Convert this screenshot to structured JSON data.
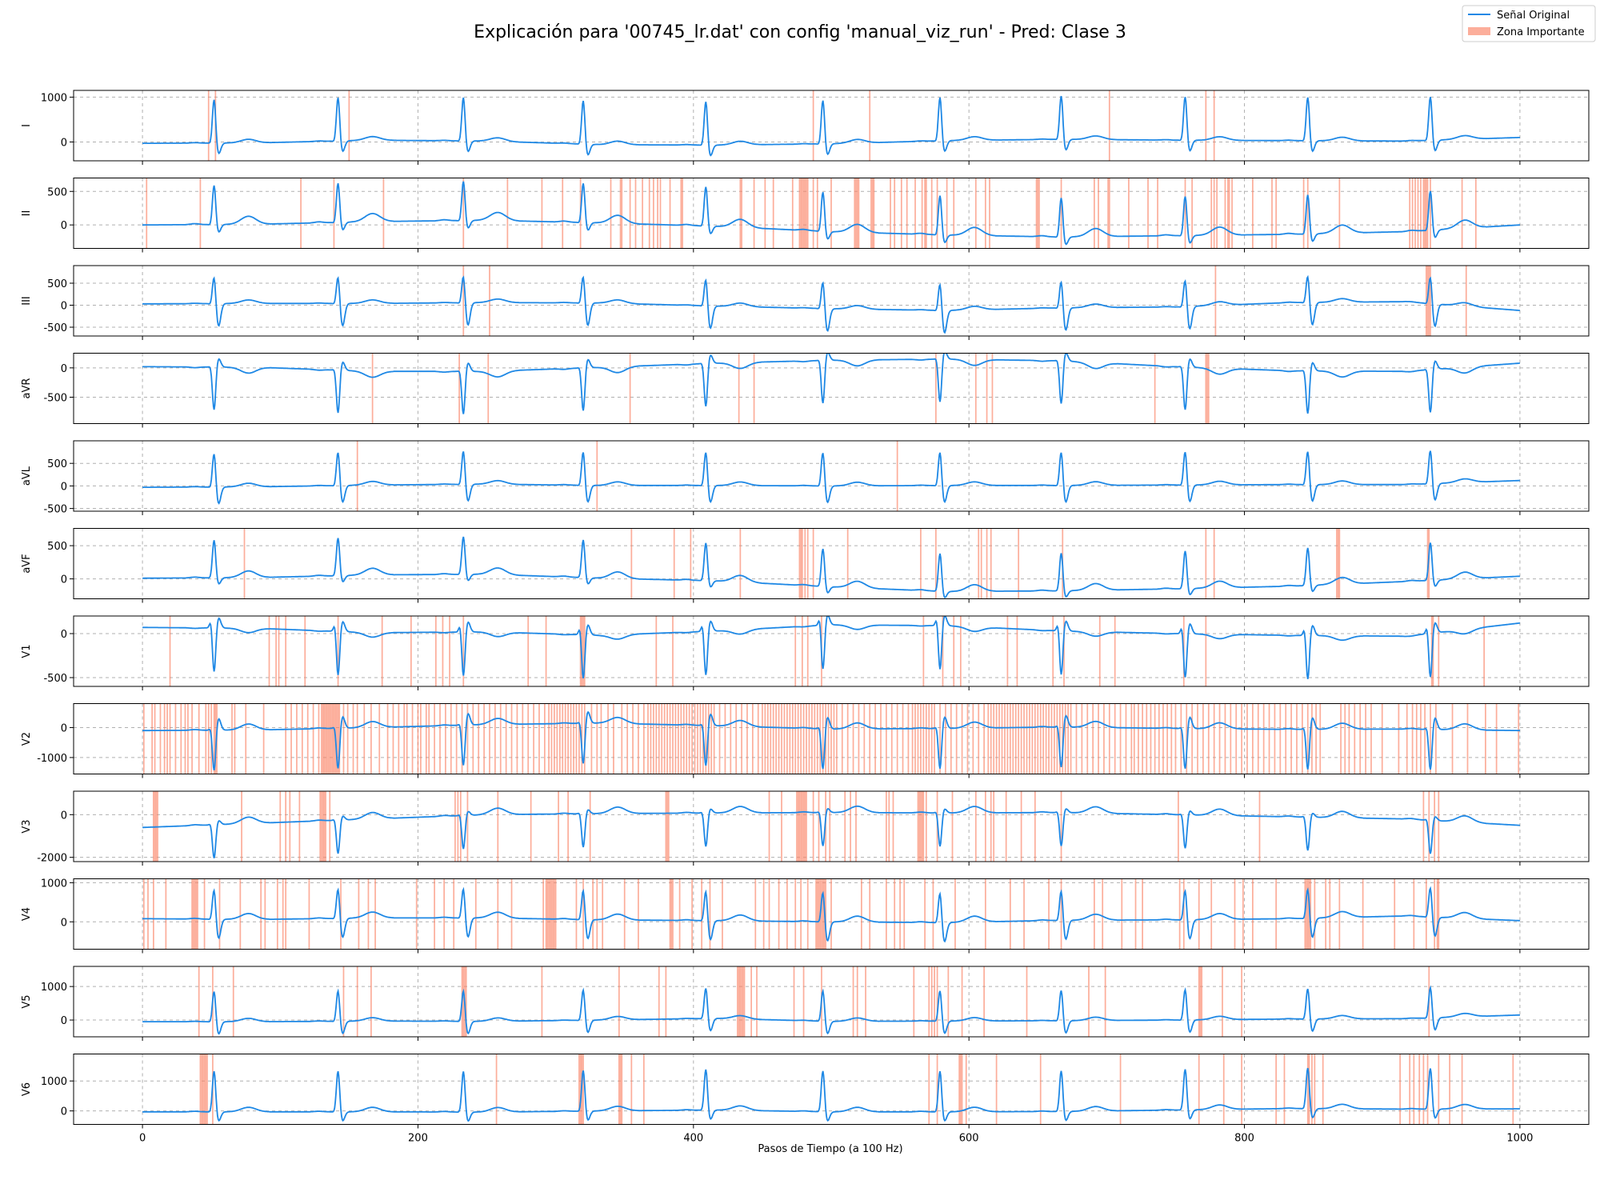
{
  "chart_data": {
    "type": "line",
    "title": "Explicación para '00745_lr.dat' con config 'manual_viz_run' - Pred: Clase 3",
    "xlabel": "Pasos de Tiempo (a 100 Hz)",
    "xlim": [
      -50,
      1050
    ],
    "xticks": [
      0,
      200,
      400,
      600,
      800,
      1000
    ],
    "grid": true,
    "legend_position": "top-right",
    "legend": [
      {
        "label": "Señal Original",
        "kind": "line",
        "color": "#1e88e5"
      },
      {
        "label": "Zona Importante",
        "kind": "patch",
        "color": "#fa8266"
      }
    ],
    "beats": [
      52,
      142,
      233,
      320,
      409,
      494,
      579,
      667,
      757,
      846,
      935
    ],
    "leads": [
      {
        "name": "I",
        "ylim": [
          -420,
          1150
        ],
        "yticks": [
          0,
          1000
        ],
        "baseline": [
          -30,
          -20,
          40,
          20,
          -60,
          -70,
          -40,
          30,
          60,
          40,
          30,
          20,
          100
        ],
        "qrs": 1000,
        "q": -30,
        "s": -250,
        "t": 80,
        "zones": [
          48,
          53,
          150,
          487,
          528,
          702,
          772,
          778
        ]
      },
      {
        "name": "II",
        "ylim": [
          -350,
          700
        ],
        "yticks": [
          0,
          500
        ],
        "baseline": [
          0,
          10,
          50,
          70,
          30,
          -20,
          -100,
          -150,
          -180,
          -160,
          -140,
          -100,
          0
        ],
        "qrs": 600,
        "q": -20,
        "s": -120,
        "t": 120,
        "zones": [
          3,
          42,
          115,
          139,
          175,
          233,
          265,
          290,
          305,
          318,
          340,
          347,
          348,
          354,
          358,
          363,
          368,
          371,
          374,
          376,
          383,
          391,
          392,
          434,
          435,
          444,
          452,
          458,
          472,
          477,
          478,
          479,
          480,
          481,
          482,
          483,
          487,
          490,
          500,
          517,
          518,
          519,
          520,
          529,
          530,
          531,
          543,
          546,
          551,
          555,
          561,
          566,
          568,
          569,
          573,
          577,
          584,
          589,
          605,
          612,
          615,
          649,
          650,
          651,
          667,
          691,
          694,
          701,
          702,
          716,
          730,
          737,
          757,
          762,
          776,
          778,
          780,
          786,
          788,
          789,
          791,
          806,
          820,
          823,
          843,
          846,
          869,
          920,
          922,
          924,
          926,
          928,
          930,
          931,
          932,
          933,
          935,
          958,
          968
        ]
      },
      {
        "name": "III",
        "ylim": [
          -700,
          900
        ],
        "yticks": [
          -500,
          0,
          500
        ],
        "baseline": [
          30,
          40,
          40,
          60,
          50,
          -20,
          -80,
          -120,
          -60,
          -40,
          60,
          80,
          -120
        ],
        "qrs": 650,
        "q": -30,
        "s": -520,
        "t": 80,
        "zones": [
          233,
          252,
          779,
          932,
          933,
          934,
          935,
          961
        ]
      },
      {
        "name": "aVR",
        "ylim": [
          -950,
          250
        ],
        "yticks": [
          -500,
          0
        ],
        "baseline": [
          20,
          10,
          -60,
          -60,
          10,
          80,
          130,
          150,
          120,
          20,
          -50,
          -60,
          80
        ],
        "qrs": -750,
        "q": 30,
        "s": 150,
        "t": -100,
        "zones": [
          167,
          230,
          251,
          354,
          433,
          444,
          576,
          605,
          613,
          617,
          735,
          772,
          773,
          774
        ]
      },
      {
        "name": "aVL",
        "ylim": [
          -560,
          1000
        ],
        "yticks": [
          -500,
          0,
          500
        ],
        "baseline": [
          -30,
          -20,
          20,
          40,
          10,
          10,
          0,
          10,
          10,
          20,
          30,
          30,
          120
        ],
        "qrs": 780,
        "q": -30,
        "s": -380,
        "t": 80,
        "zones": [
          156,
          330,
          548
        ]
      },
      {
        "name": "aVF",
        "ylim": [
          -300,
          760
        ],
        "yticks": [
          0,
          500
        ],
        "baseline": [
          10,
          20,
          60,
          70,
          10,
          -30,
          -120,
          -190,
          -180,
          -150,
          -110,
          -40,
          40
        ],
        "qrs": 580,
        "q": -10,
        "s": -100,
        "t": 100,
        "zones": [
          74,
          355,
          386,
          398,
          434,
          477,
          478,
          479,
          481,
          483,
          487,
          512,
          565,
          576,
          607,
          609,
          613,
          616,
          636,
          668,
          772,
          778,
          867,
          868,
          869,
          933,
          934
        ]
      },
      {
        "name": "V1",
        "ylim": [
          -600,
          200
        ],
        "yticks": [
          -500,
          0
        ],
        "baseline": [
          70,
          60,
          10,
          20,
          -20,
          30,
          100,
          90,
          30,
          0,
          -20,
          -30,
          120
        ],
        "qrs": -520,
        "q": 100,
        "s": 120,
        "t": -50,
        "zones": [
          20,
          92,
          97,
          99,
          104,
          118,
          142,
          174,
          195,
          213,
          218,
          223,
          233,
          280,
          293,
          318,
          319,
          320,
          321,
          373,
          385,
          474,
          479,
          483,
          493,
          567,
          581,
          589,
          594,
          628,
          635,
          661,
          669,
          695,
          706,
          756,
          772,
          936,
          937,
          941,
          974
        ]
      },
      {
        "name": "V2",
        "ylim": [
          -1550,
          800
        ],
        "yticks": [
          -1000,
          0
        ],
        "baseline": [
          -100,
          -80,
          0,
          100,
          150,
          60,
          -50,
          -30,
          20,
          -30,
          -60,
          -50,
          -100
        ],
        "qrs": -1400,
        "q": 100,
        "s": 400,
        "t": 200,
        "zones": [
          1,
          7,
          9,
          13,
          16,
          18,
          20,
          24,
          28,
          31,
          33,
          36,
          41,
          46,
          48,
          50,
          52,
          53,
          54,
          65,
          67,
          75,
          88,
          104,
          108,
          112,
          116,
          120,
          124,
          128,
          130,
          131,
          132,
          133,
          134,
          135,
          136,
          137,
          138,
          139,
          140,
          141,
          142,
          143,
          146,
          149,
          153,
          156,
          161,
          166,
          172,
          178,
          182,
          186,
          190,
          192,
          196,
          200,
          202,
          206,
          208,
          212,
          216,
          220,
          224,
          228,
          232,
          236,
          240,
          244,
          248,
          252,
          256,
          260,
          264,
          268,
          272,
          276,
          280,
          284,
          288,
          292,
          295,
          297,
          299,
          301,
          303,
          305,
          307,
          309,
          311,
          313,
          315,
          317,
          319,
          321,
          326,
          330,
          333,
          338,
          342,
          348,
          352,
          356,
          360,
          364,
          367,
          369,
          371,
          373,
          375,
          377,
          379,
          381,
          383,
          385,
          387,
          389,
          391,
          393,
          395,
          397,
          399,
          401,
          403,
          405,
          407,
          409,
          411,
          413,
          415,
          419,
          423,
          427,
          431,
          435,
          439,
          443,
          447,
          450,
          452,
          454,
          456,
          458,
          460,
          462,
          464,
          466,
          468,
          470,
          472,
          474,
          476,
          478,
          480,
          482,
          484,
          486,
          488,
          490,
          492,
          494,
          496,
          498,
          500,
          502,
          504,
          508,
          512,
          516,
          520,
          524,
          528,
          532,
          536,
          540,
          544,
          548,
          552,
          556,
          559,
          561,
          563,
          565,
          567,
          569,
          571,
          573,
          575,
          579,
          583,
          587,
          591,
          595,
          599,
          603,
          607,
          611,
          614,
          616,
          618,
          620,
          622,
          624,
          626,
          628,
          630,
          632,
          634,
          636,
          638,
          640,
          642,
          644,
          646,
          648,
          650,
          652,
          654,
          656,
          658,
          660,
          662,
          664,
          666,
          668,
          670,
          672,
          674,
          678,
          682,
          686,
          690,
          694,
          698,
          702,
          706,
          710,
          714,
          718,
          720,
          723,
          726,
          729,
          732,
          735,
          738,
          741,
          744,
          747,
          750,
          754,
          758,
          762,
          766,
          770,
          774,
          778,
          782,
          786,
          790,
          794,
          798,
          802,
          806,
          810,
          814,
          818,
          822,
          826,
          830,
          834,
          838,
          842,
          846,
          849,
          852,
          855,
          870,
          873,
          876,
          880,
          884,
          888,
          892,
          900,
          912,
          918,
          922,
          925,
          928,
          931,
          935,
          939,
          951,
          962,
          975,
          983,
          999
        ]
      },
      {
        "name": "V3",
        "ylim": [
          -2200,
          1100
        ],
        "yticks": [
          -2000,
          0
        ],
        "baseline": [
          -600,
          -400,
          -200,
          0,
          50,
          80,
          100,
          80,
          100,
          0,
          -100,
          -200,
          -500
        ],
        "qrs": -1600,
        "q": 100,
        "s": 200,
        "t": 300,
        "zones": [
          8,
          9,
          10,
          11,
          72,
          100,
          104,
          107,
          114,
          129,
          130,
          131,
          132,
          133,
          136,
          227,
          229,
          231,
          236,
          258,
          282,
          302,
          309,
          325,
          380,
          381,
          382,
          455,
          464,
          475,
          476,
          477,
          478,
          479,
          480,
          481,
          482,
          487,
          491,
          496,
          499,
          510,
          514,
          518,
          540,
          542,
          545,
          563,
          564,
          565,
          566,
          567,
          569,
          577,
          588,
          605,
          612,
          616,
          618,
          627,
          638,
          648,
          667,
          752,
          811,
          930,
          934,
          938,
          941
        ]
      },
      {
        "name": "V4",
        "ylim": [
          -700,
          1100
        ],
        "yticks": [
          0,
          1000
        ],
        "baseline": [
          80,
          60,
          100,
          100,
          50,
          30,
          0,
          -20,
          40,
          50,
          80,
          150,
          30
        ],
        "qrs": 800,
        "q": -30,
        "s": -500,
        "t": 150,
        "zones": [
          1,
          4,
          8,
          17,
          36,
          37,
          38,
          39,
          40,
          45,
          56,
          71,
          86,
          89,
          98,
          102,
          104,
          121,
          144,
          157,
          164,
          169,
          199,
          212,
          219,
          226,
          242,
          258,
          268,
          291,
          293,
          294,
          295,
          296,
          297,
          298,
          299,
          300,
          315,
          320,
          327,
          330,
          334,
          350,
          360,
          383,
          384,
          385,
          390,
          399,
          406,
          412,
          421,
          445,
          451,
          455,
          462,
          468,
          474,
          478,
          483,
          489,
          490,
          491,
          492,
          493,
          494,
          495,
          496,
          500,
          522,
          528,
          540,
          546,
          550,
          553,
          568,
          574,
          590,
          612,
          630,
          640,
          658,
          667,
          691,
          697,
          711,
          721,
          726,
          753,
          756,
          767,
          776,
          793,
          799,
          806,
          823,
          844,
          845,
          846,
          847,
          848,
          851,
          859,
          862,
          869,
          886,
          909,
          923,
          932,
          938,
          940,
          941
        ]
      },
      {
        "name": "V5",
        "ylim": [
          -500,
          1600
        ],
        "yticks": [
          0,
          1000
        ],
        "baseline": [
          -50,
          -50,
          -30,
          -40,
          0,
          50,
          -40,
          -30,
          -20,
          0,
          30,
          40,
          150
        ],
        "qrs": 950,
        "q": -30,
        "s": -380,
        "t": 100,
        "zones": [
          41,
          51,
          66,
          146,
          156,
          166,
          232,
          233,
          234,
          235,
          290,
          346,
          375,
          380,
          432,
          433,
          434,
          435,
          436,
          437,
          442,
          446,
          473,
          480,
          493,
          516,
          519,
          525,
          560,
          571,
          573,
          575,
          577,
          585,
          595,
          611,
          642,
          687,
          699,
          767,
          768,
          769,
          784,
          798,
          934
        ]
      },
      {
        "name": "V6",
        "ylim": [
          -450,
          1900
        ],
        "yticks": [
          0,
          1000
        ],
        "baseline": [
          -30,
          -30,
          -30,
          -40,
          0,
          30,
          -30,
          -30,
          -20,
          30,
          80,
          60,
          70
        ],
        "qrs": 1400,
        "q": -30,
        "s": -320,
        "t": 150,
        "zones": [
          42,
          43,
          44,
          45,
          46,
          47,
          51,
          257,
          317,
          318,
          319,
          320,
          346,
          347,
          348,
          355,
          364,
          571,
          577,
          593,
          594,
          595,
          598,
          620,
          652,
          710,
          767,
          785,
          798,
          823,
          829,
          846,
          847,
          849,
          851,
          857,
          913,
          920,
          923,
          927,
          930,
          933,
          941,
          949,
          958,
          995
        ]
      }
    ]
  }
}
